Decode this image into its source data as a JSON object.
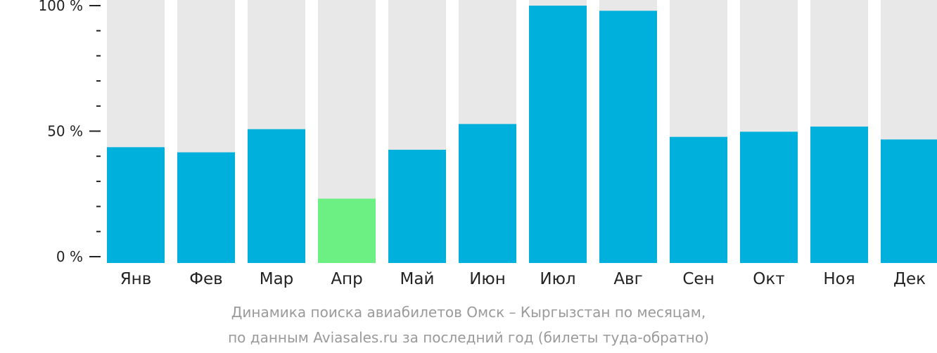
{
  "chart_data": {
    "type": "bar",
    "categories": [
      "Янв",
      "Фев",
      "Мар",
      "Апр",
      "Май",
      "Июн",
      "Июл",
      "Авг",
      "Сен",
      "Окт",
      "Ноя",
      "Дек"
    ],
    "values": [
      45,
      43,
      52,
      25,
      44,
      54,
      100,
      98,
      49,
      51,
      53,
      48
    ],
    "highlight_index": 3,
    "ylim": [
      0,
      100
    ],
    "yticks": [
      {
        "value": 0,
        "label": "0 %"
      },
      {
        "value": 50,
        "label": "50 %"
      },
      {
        "value": 100,
        "label": "100 %"
      }
    ],
    "minor_ticks": [
      10,
      20,
      30,
      40,
      60,
      70,
      80,
      90
    ],
    "caption": [
      "Динамика поиска авиабилетов Омск – Кыргызстан по месяцам,",
      "по данным Aviasales.ru за последний год (билеты туда-обратно)"
    ],
    "colors": {
      "bar": "#00b0dc",
      "highlight": "#6cf084",
      "background_bar": "#e8e8e8",
      "axis": "#222222",
      "caption": "#9a9a9a"
    }
  }
}
